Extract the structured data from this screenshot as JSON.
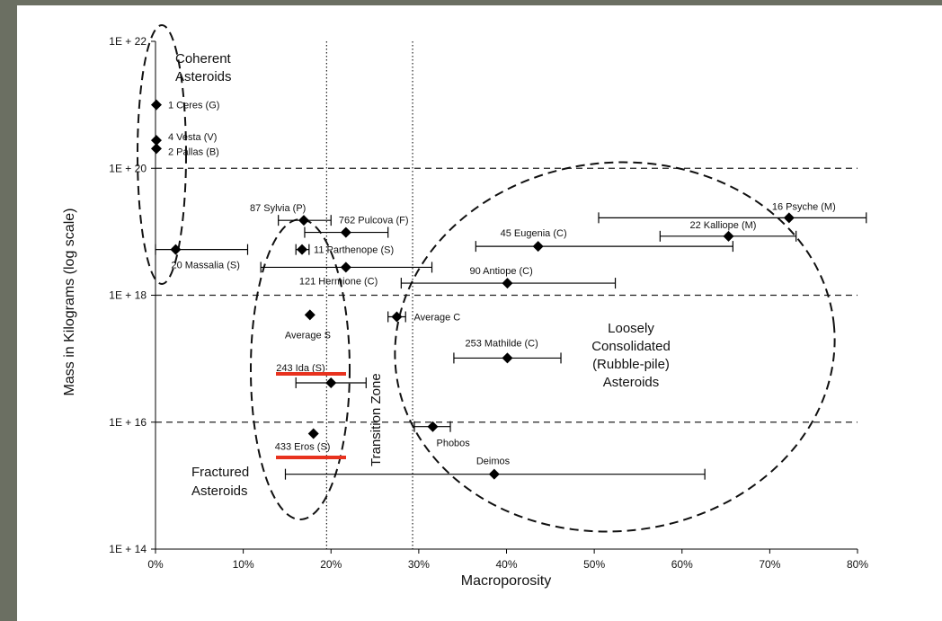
{
  "chart_data": {
    "type": "scatter",
    "title": "",
    "xlabel": "Macroporosity",
    "ylabel": "Mass in Kilograms (log scale)",
    "x_scale": "linear",
    "y_scale": "log",
    "xlim": [
      0,
      80
    ],
    "ylim_log10": [
      14,
      22
    ],
    "x_ticks": [
      0,
      10,
      20,
      30,
      40,
      50,
      60,
      70,
      80
    ],
    "x_tick_labels": [
      "0%",
      "10%",
      "20%",
      "30%",
      "40%",
      "50%",
      "60%",
      "70%",
      "80%"
    ],
    "y_ticks_log10": [
      14,
      16,
      18,
      20,
      22
    ],
    "y_tick_labels": [
      "1E + 14",
      "1E + 16",
      "1E + 18",
      "1E + 20",
      "1E + 22"
    ],
    "horizontal_dashed_lines_log10": [
      16,
      18,
      20
    ],
    "vertical_dotted_lines": [
      19.5,
      29.3
    ],
    "points": [
      {
        "label": "1 Ceres (G)",
        "x": 0.1,
        "log10_mass": 21.0
      },
      {
        "label": "4 Vesta (V)",
        "x": 0.1,
        "log10_mass": 20.44
      },
      {
        "label": "2 Pallas (B)",
        "x": 0.1,
        "log10_mass": 20.31
      },
      {
        "label": "20 Massalia (S)",
        "x": 2.3,
        "log10_mass": 18.72,
        "xerr": [
          0,
          10.5
        ]
      },
      {
        "label": "87 Sylvia (P)",
        "x": 16.9,
        "log10_mass": 19.18,
        "xerr": [
          14,
          20
        ]
      },
      {
        "label": "762 Pulcova (F)",
        "x": 21.7,
        "log10_mass": 18.99,
        "xerr": [
          17,
          26.5
        ]
      },
      {
        "label": "11 Parthenope (S)",
        "x": 16.7,
        "log10_mass": 18.72,
        "xerr": [
          16,
          17.5
        ]
      },
      {
        "label": "121 Hermione (C)",
        "x": 21.7,
        "log10_mass": 18.44,
        "xerr": [
          12,
          31.5
        ]
      },
      {
        "label": "45 Eugenia (C)",
        "x": 43.6,
        "log10_mass": 18.77,
        "xerr": [
          36.5,
          65.8
        ]
      },
      {
        "label": "16 Psyche (M)",
        "x": 72.2,
        "log10_mass": 19.22,
        "xerr": [
          50.5,
          81
        ]
      },
      {
        "label": "22 Kalliope (M)",
        "x": 65.3,
        "log10_mass": 18.93,
        "xerr": [
          57.5,
          73
        ]
      },
      {
        "label": "90 Antiope (C)",
        "x": 40.1,
        "log10_mass": 18.19,
        "xerr": [
          28,
          52.4
        ]
      },
      {
        "label": "Average S",
        "x": 17.6,
        "log10_mass": 17.69
      },
      {
        "label": "Average C",
        "x": 27.5,
        "log10_mass": 17.66,
        "xerr": [
          26.5,
          28.5
        ]
      },
      {
        "label": "253 Mathilde (C)",
        "x": 40.1,
        "log10_mass": 17.01,
        "xerr": [
          34,
          46.2
        ]
      },
      {
        "label": "243 Ida (S)",
        "x": 20,
        "log10_mass": 16.62,
        "xerr": [
          16,
          24
        ]
      },
      {
        "label": "433 Eros (S)",
        "x": 18,
        "log10_mass": 15.82
      },
      {
        "label": "Phobos",
        "x": 31.6,
        "log10_mass": 15.93,
        "xerr": [
          29.5,
          33.6
        ]
      },
      {
        "label": "Deimos",
        "x": 38.6,
        "log10_mass": 15.18,
        "xerr": [
          14.8,
          62.6
        ]
      }
    ],
    "regions": [
      "Coherent Asteroids",
      "Fractured Asteroids",
      "Transition Zone",
      "Loosely Consolidated (Rubble-pile) Asteroids"
    ],
    "highlighted_points": [
      "243 Ida (S)",
      "433 Eros (S)"
    ],
    "highlight_color": "#e8321e",
    "marker_color": "#000000"
  },
  "text": {
    "coherent": [
      "Coherent",
      "Asteroids"
    ],
    "fractured": [
      "Fractured",
      "Asteroids"
    ],
    "transition": "Transition  Zone",
    "loose": [
      "Loosely",
      "Consolidated",
      "(Rubble-pile)",
      "Asteroids"
    ]
  }
}
